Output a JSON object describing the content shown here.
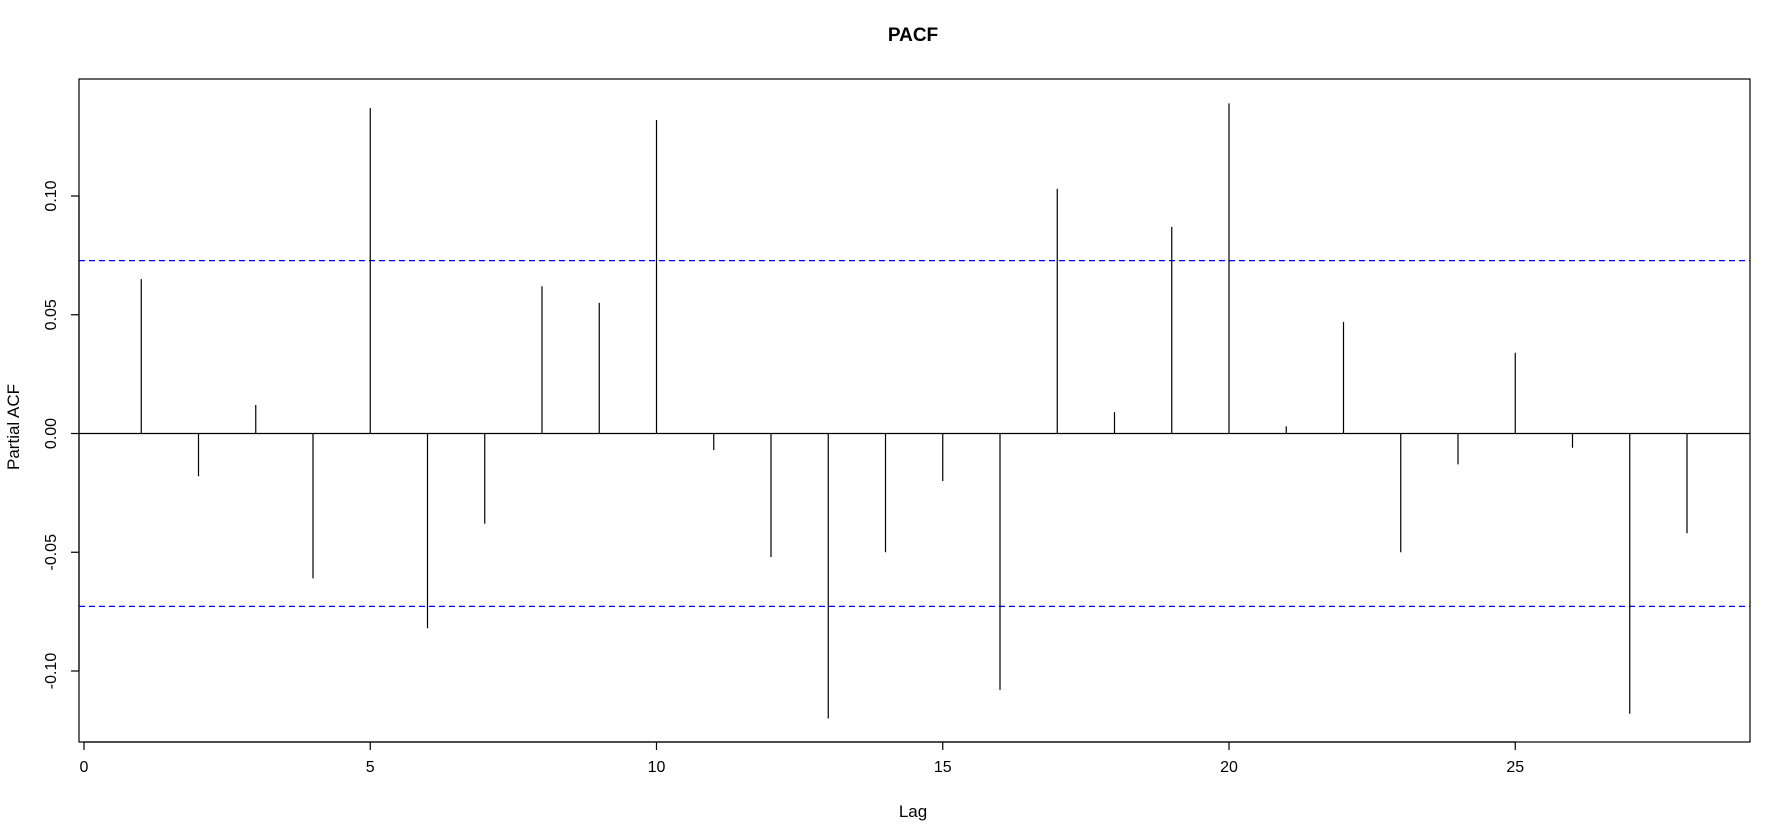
{
  "chart_data": {
    "type": "bar",
    "subtype": "pacf-stem",
    "title": "PACF",
    "xlabel": "Lag",
    "ylabel": "Partial ACF",
    "xlim": [
      0,
      29
    ],
    "ylim": [
      -0.125,
      0.15
    ],
    "x_ticks": [
      0,
      5,
      10,
      15,
      20,
      25
    ],
    "y_ticks": [
      -0.1,
      -0.05,
      0.0,
      0.05,
      0.1
    ],
    "y_tick_labels": [
      "-0.10",
      "-0.05",
      "0.00",
      "0.05",
      "0.10"
    ],
    "grid": false,
    "confidence_bound": 0.0728,
    "confidence_color": "#0000ff",
    "stem_color": "#000000",
    "lags": [
      1,
      2,
      3,
      4,
      5,
      6,
      7,
      8,
      9,
      10,
      11,
      12,
      13,
      14,
      15,
      16,
      17,
      18,
      19,
      20,
      21,
      22,
      23,
      24,
      25,
      26,
      27,
      28
    ],
    "values": [
      0.065,
      -0.018,
      0.012,
      -0.061,
      0.137,
      -0.082,
      -0.038,
      0.062,
      0.055,
      0.132,
      -0.007,
      -0.052,
      -0.12,
      -0.05,
      -0.02,
      -0.108,
      0.103,
      0.009,
      0.087,
      0.139,
      0.003,
      0.047,
      -0.05,
      -0.013,
      0.034,
      -0.006,
      -0.118,
      -0.042
    ]
  }
}
